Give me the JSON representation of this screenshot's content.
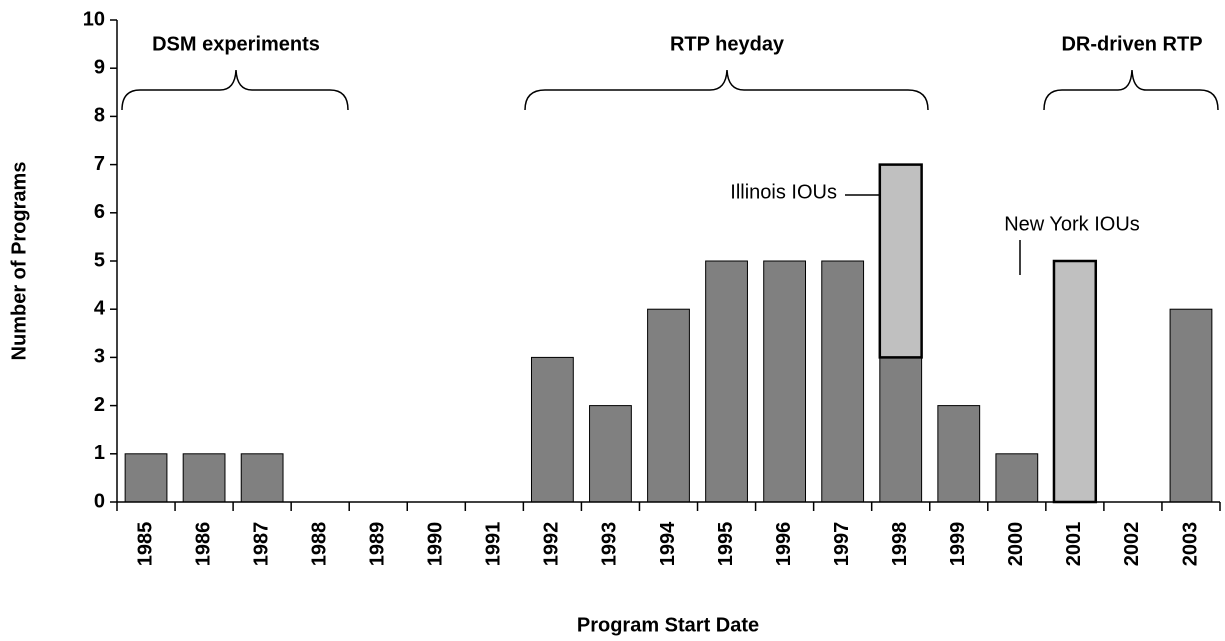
{
  "chart_data": {
    "type": "stacked_bar",
    "x_label": "Program Start Date",
    "y_label": "Number of Programs",
    "categories": [
      "1985",
      "1986",
      "1987",
      "1988",
      "1989",
      "1990",
      "1991",
      "1992",
      "1993",
      "1994",
      "1995",
      "1996",
      "1997",
      "1998",
      "1999",
      "2000",
      "2001",
      "2002",
      "2003"
    ],
    "series": [
      {
        "color": "#808080",
        "values": [
          1,
          1,
          1,
          0,
          0,
          0,
          0,
          3,
          2,
          4,
          5,
          5,
          5,
          3,
          2,
          1,
          0,
          0,
          4
        ]
      },
      {
        "color": "#c0c0c0",
        "values": [
          0,
          0,
          0,
          0,
          0,
          0,
          0,
          0,
          0,
          0,
          0,
          0,
          0,
          4,
          0,
          0,
          5,
          0,
          0
        ]
      }
    ],
    "ylim": [
      0,
      10
    ],
    "yticks": [
      0,
      1,
      2,
      3,
      4,
      5,
      6,
      7,
      8,
      9,
      10
    ],
    "annotations": [
      "DSM experiments",
      "RTP heyday",
      "DR-driven RTP",
      "Illinois IOUs",
      "New York IOUs"
    ]
  }
}
